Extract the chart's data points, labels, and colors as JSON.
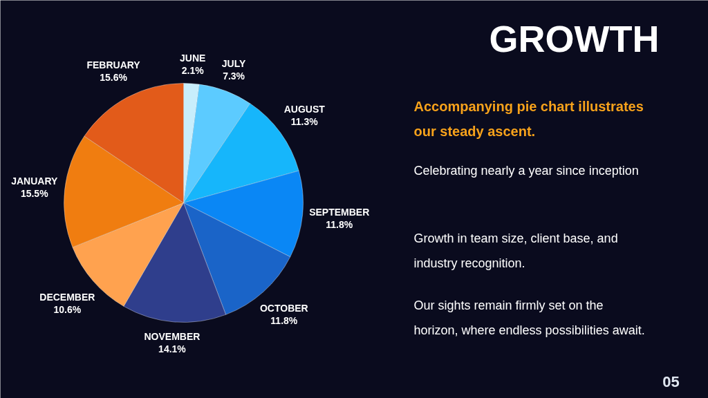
{
  "chart_data": {
    "type": "pie",
    "title": "GROWTH",
    "subtitle": "Accompanying pie chart illustrates our steady ascent.",
    "categories": [
      "JUNE",
      "JULY",
      "AUGUST",
      "SEPTEMBER",
      "OCTOBER",
      "NOVEMBER",
      "DECEMBER",
      "JANUARY",
      "FEBRUARY"
    ],
    "values": [
      2.1,
      7.3,
      11.3,
      11.8,
      11.8,
      14.1,
      10.6,
      15.5,
      15.6
    ],
    "colors": [
      "#c8eefc",
      "#5ccbff",
      "#16b6fb",
      "#0a87f5",
      "#1a64c8",
      "#2f3e8c",
      "#ffa24f",
      "#f07d10",
      "#e25b1a"
    ],
    "value_labels": [
      "2.1%",
      "7.3%",
      "11.3%",
      "11.8%",
      "11.8%",
      "14.1%",
      "10.6%",
      "15.5%",
      "15.6%"
    ],
    "annotations": [
      "Celebrating nearly a year since inception",
      "Growth in team size, client base, and industry recognition.",
      "Our sights remain firmly set on the horizon, where endless possibilities await.",
      "05"
    ]
  }
}
